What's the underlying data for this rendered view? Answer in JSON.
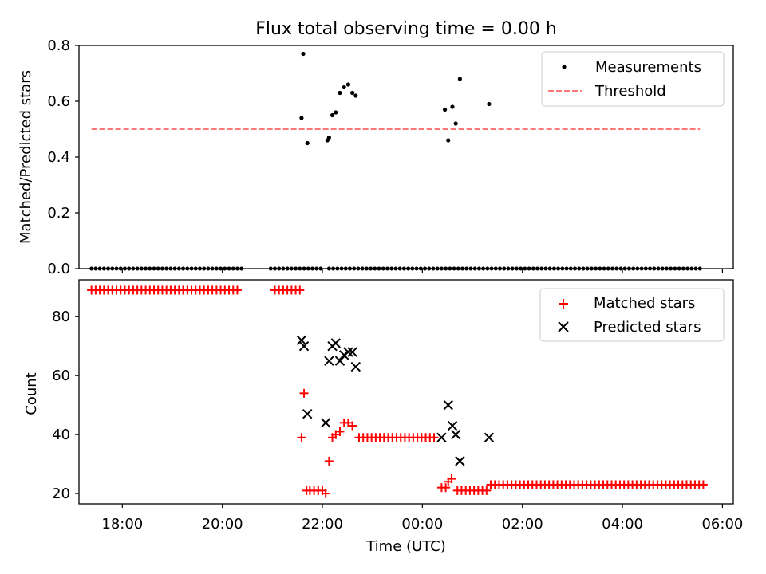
{
  "chart_data": [
    {
      "type": "scatter",
      "title": "Flux total observing time = 0.00 h",
      "xlabel": "",
      "ylabel": "Matched/Predicted stars",
      "xlim": [
        "17:08",
        "06:13"
      ],
      "ylim": [
        0,
        0.8
      ],
      "yticks": [
        "0.0",
        "0.2",
        "0.4",
        "0.6",
        "0.8"
      ],
      "legend_position": "top-right",
      "series": [
        {
          "name": "Measurements",
          "marker": "dot",
          "color": "#000000",
          "x_start": "17:23",
          "x_end": "05:33",
          "x_step_minutes": 5,
          "default_y": 0,
          "gaps": [
            [
              "20:25",
              "20:57"
            ],
            [
              "21:43",
              "21:47"
            ],
            [
              "22:02",
              "22:07"
            ]
          ],
          "nonzero_points": [
            {
              "x": "21:35",
              "y": 0.54
            },
            {
              "x": "21:37",
              "y": 0.77
            },
            {
              "x": "21:42",
              "y": 0.45
            },
            {
              "x": "22:06",
              "y": 0.46
            },
            {
              "x": "22:08",
              "y": 0.47
            },
            {
              "x": "22:12",
              "y": 0.55
            },
            {
              "x": "22:16",
              "y": 0.56
            },
            {
              "x": "22:21",
              "y": 0.63
            },
            {
              "x": "22:26",
              "y": 0.65
            },
            {
              "x": "22:31",
              "y": 0.66
            },
            {
              "x": "22:36",
              "y": 0.63
            },
            {
              "x": "22:40",
              "y": 0.62
            },
            {
              "x": "00:27",
              "y": 0.57
            },
            {
              "x": "00:31",
              "y": 0.46
            },
            {
              "x": "00:36",
              "y": 0.58
            },
            {
              "x": "00:40",
              "y": 0.52
            },
            {
              "x": "00:45",
              "y": 0.68
            },
            {
              "x": "01:20",
              "y": 0.59
            }
          ]
        },
        {
          "name": "Threshold",
          "line_style": "dashed",
          "color": "#ff7777",
          "x": [
            "17:23",
            "05:33"
          ],
          "y": [
            0.5,
            0.5
          ]
        }
      ]
    },
    {
      "type": "scatter",
      "title": "",
      "xlabel": "Time (UTC)",
      "ylabel": "Count",
      "xlim": [
        "17:08",
        "06:13"
      ],
      "ylim": [
        16.5,
        92.5
      ],
      "yticks": [
        "20",
        "40",
        "60",
        "80"
      ],
      "xticks": [
        "18:00",
        "20:00",
        "22:00",
        "00:00",
        "02:00",
        "04:00",
        "06:00"
      ],
      "legend_position": "top-right",
      "series": [
        {
          "name": "Matched stars",
          "marker": "plus",
          "color": "#ff0000",
          "runs": [
            {
              "from": "17:23",
              "to": "20:20",
              "y": 89
            },
            {
              "from": "21:03",
              "to": "21:33",
              "y": 89
            },
            {
              "from": "21:45",
              "to": "21:55",
              "y": 21
            },
            {
              "from": "22:44",
              "to": "00:14",
              "y": 39
            },
            {
              "from": "00:47",
              "to": "01:17",
              "y": 21
            },
            {
              "from": "01:22",
              "to": "05:37",
              "y": 23
            }
          ],
          "points": [
            {
              "x": "21:35",
              "y": 39
            },
            {
              "x": "21:38",
              "y": 54
            },
            {
              "x": "21:41",
              "y": 21
            },
            {
              "x": "22:00",
              "y": 21
            },
            {
              "x": "22:04",
              "y": 20
            },
            {
              "x": "22:08",
              "y": 31
            },
            {
              "x": "22:12",
              "y": 39
            },
            {
              "x": "22:16",
              "y": 40
            },
            {
              "x": "22:21",
              "y": 41
            },
            {
              "x": "22:26",
              "y": 44
            },
            {
              "x": "22:31",
              "y": 44
            },
            {
              "x": "22:36",
              "y": 43
            },
            {
              "x": "00:23",
              "y": 22
            },
            {
              "x": "00:28",
              "y": 22
            },
            {
              "x": "00:31",
              "y": 24
            },
            {
              "x": "00:35",
              "y": 25
            },
            {
              "x": "00:42",
              "y": 21
            }
          ]
        },
        {
          "name": "Predicted stars",
          "marker": "x",
          "color": "#000000",
          "points": [
            {
              "x": "21:35",
              "y": 72
            },
            {
              "x": "21:38",
              "y": 70
            },
            {
              "x": "21:42",
              "y": 47
            },
            {
              "x": "22:04",
              "y": 44
            },
            {
              "x": "22:08",
              "y": 65
            },
            {
              "x": "22:12",
              "y": 70
            },
            {
              "x": "22:16",
              "y": 71
            },
            {
              "x": "22:21",
              "y": 65
            },
            {
              "x": "22:26",
              "y": 67
            },
            {
              "x": "22:31",
              "y": 68
            },
            {
              "x": "22:36",
              "y": 68
            },
            {
              "x": "22:40",
              "y": 63
            },
            {
              "x": "00:23",
              "y": 39
            },
            {
              "x": "00:31",
              "y": 50
            },
            {
              "x": "00:36",
              "y": 43
            },
            {
              "x": "00:40",
              "y": 40
            },
            {
              "x": "00:45",
              "y": 31
            },
            {
              "x": "01:20",
              "y": 39
            }
          ]
        }
      ]
    }
  ]
}
